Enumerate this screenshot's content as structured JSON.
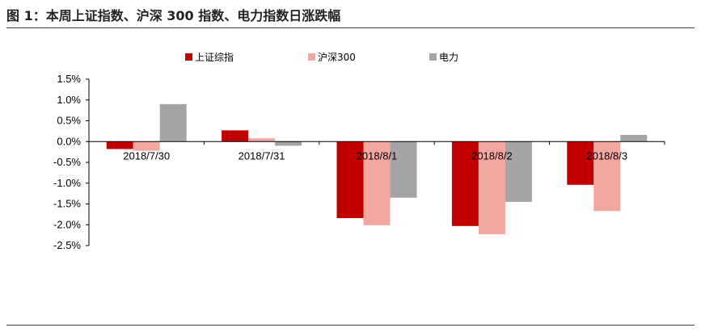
{
  "figure_title": "图 1：本周上证指数、沪深 300 指数、电力指数日涨跌幅",
  "chart_data": {
    "type": "bar",
    "categories": [
      "2018/7/30",
      "2018/7/31",
      "2018/8/1",
      "2018/8/2",
      "2018/8/3"
    ],
    "series": [
      {
        "name": "上证综指",
        "color": "#c00000",
        "values": [
          -0.18,
          0.27,
          -1.84,
          -2.03,
          -1.04
        ]
      },
      {
        "name": "沪深300",
        "color": "#f4a6a0",
        "values": [
          -0.22,
          0.08,
          -2.01,
          -2.23,
          -1.67
        ]
      },
      {
        "name": "电力",
        "color": "#a5a5a5",
        "values": [
          0.9,
          -0.1,
          -1.35,
          -1.45,
          0.16
        ]
      }
    ],
    "ylim": [
      -2.5,
      1.5
    ],
    "yticks": [
      "1.5%",
      "1.0%",
      "0.5%",
      "0.0%",
      "-0.5%",
      "-1.0%",
      "-1.5%",
      "-2.0%",
      "-2.5%"
    ],
    "ytick_values": [
      1.5,
      1.0,
      0.5,
      0.0,
      -0.5,
      -1.0,
      -1.5,
      -2.0,
      -2.5
    ],
    "legend": "top-center",
    "grid": false
  }
}
